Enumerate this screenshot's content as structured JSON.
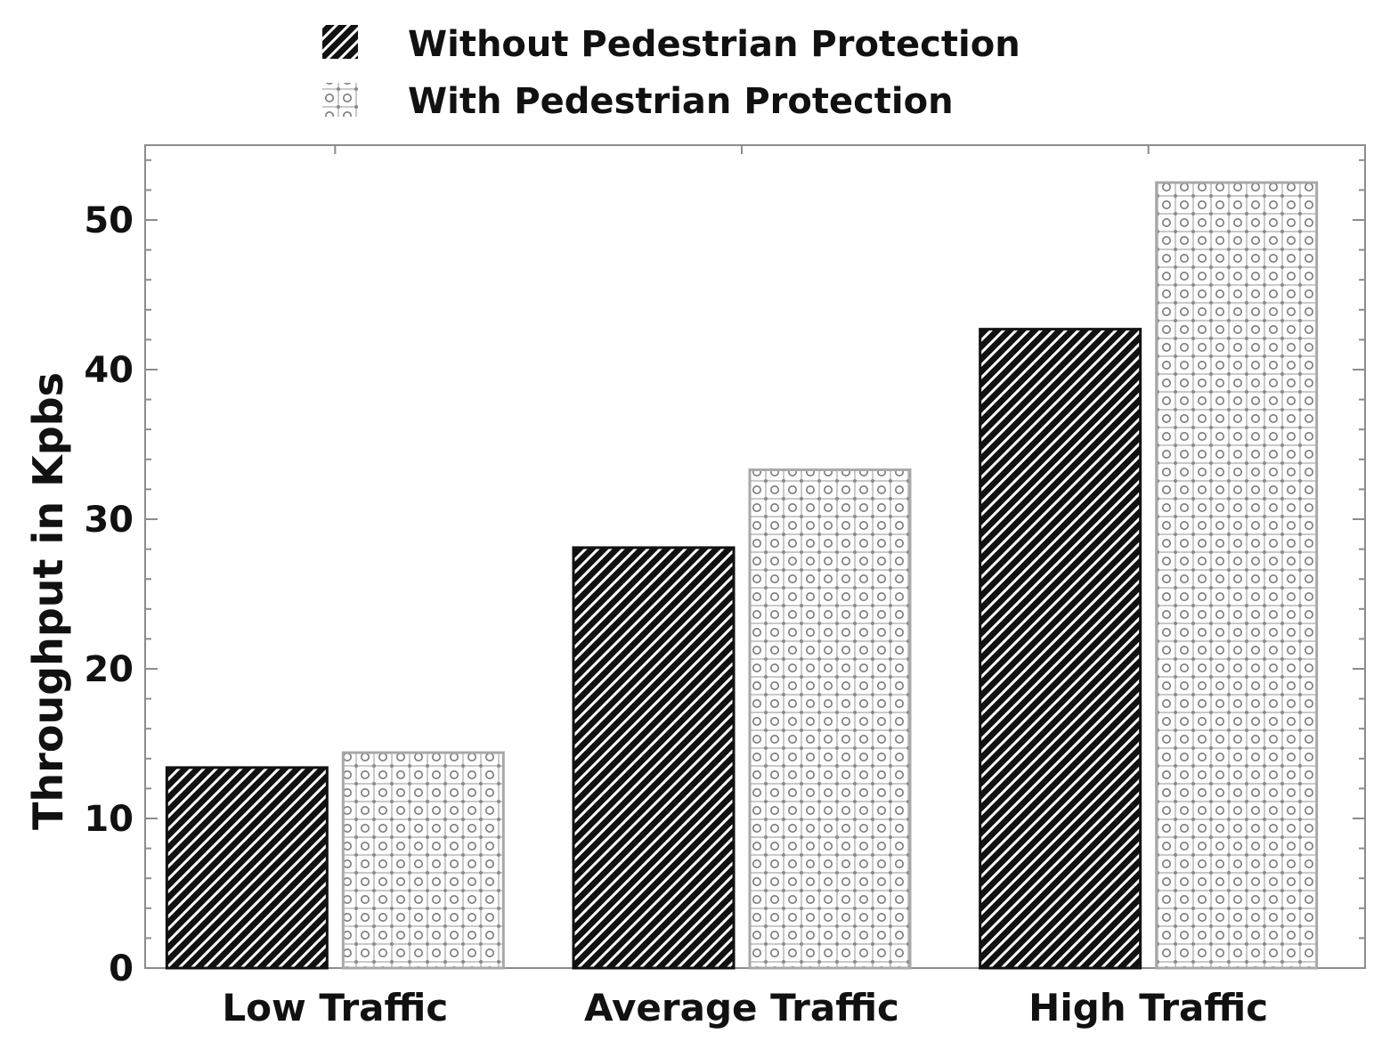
{
  "chart_data": {
    "type": "bar",
    "title": "",
    "xlabel": "",
    "ylabel": "Throughput in Kpbs",
    "categories": [
      "Low Traffic",
      "Average Traffic",
      "High Traffic"
    ],
    "series": [
      {
        "name": "Without Pedestrian Protection",
        "pattern": "diagonal-hatch",
        "color": "#111111",
        "values": [
          13.4,
          28.1,
          42.7
        ]
      },
      {
        "name": "With Pedestrian Protection",
        "pattern": "dotted-grid",
        "color": "#9a9a9a",
        "values": [
          14.4,
          33.3,
          52.5
        ]
      }
    ],
    "ylim": [
      0,
      55
    ],
    "yticks": [
      0,
      10,
      20,
      30,
      40,
      50
    ],
    "grid": false,
    "legend_position": "top-center"
  }
}
